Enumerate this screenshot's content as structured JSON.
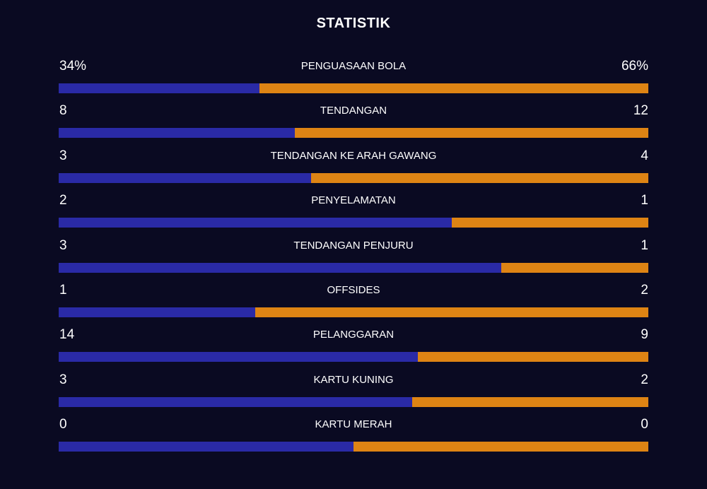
{
  "title": "STATISTIK",
  "colors": {
    "background": "#0a0a22",
    "home": "#2a2aa6",
    "away": "#de8414",
    "text": "#ffffff"
  },
  "stats": [
    {
      "label": "PENGUASAAN BOLA",
      "home": "34%",
      "away": "66%",
      "home_share": 0.34
    },
    {
      "label": "TENDANGAN",
      "home": "8",
      "away": "12",
      "home_share": 0.4
    },
    {
      "label": "TENDANGAN KE ARAH GAWANG",
      "home": "3",
      "away": "4",
      "home_share": 0.4286
    },
    {
      "label": "PENYELAMATAN",
      "home": "2",
      "away": "1",
      "home_share": 0.6667
    },
    {
      "label": "TENDANGAN PENJURU",
      "home": "3",
      "away": "1",
      "home_share": 0.75
    },
    {
      "label": "OFFSIDES",
      "home": "1",
      "away": "2",
      "home_share": 0.3333
    },
    {
      "label": "PELANGGARAN",
      "home": "14",
      "away": "9",
      "home_share": 0.6087
    },
    {
      "label": "KARTU KUNING",
      "home": "3",
      "away": "2",
      "home_share": 0.6
    },
    {
      "label": "KARTU MERAH",
      "home": "0",
      "away": "0",
      "home_share": 0.5
    }
  ]
}
